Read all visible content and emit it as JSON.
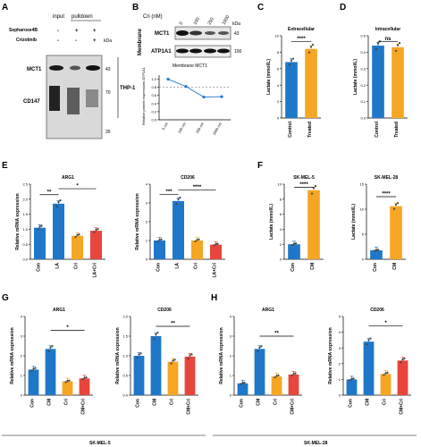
{
  "colors": {
    "blue": "#1f77c9",
    "orange": "#f5a623",
    "red": "#e8453c",
    "dot": "#444444"
  },
  "panel_a": {
    "letter": "A",
    "input_label": "input",
    "pulldown_label": "pulldown",
    "row1_label": "Sepharose4B",
    "row2_label": "Crizotinib",
    "row1_signs": [
      "-",
      "+",
      "+"
    ],
    "row2_signs": [
      "-",
      "-",
      "+"
    ],
    "kda": "kDa",
    "band1": "MCT1",
    "band2": "CD147",
    "cell_line": "THP-1",
    "markers": [
      "43",
      "70",
      "35"
    ]
  },
  "panel_b": {
    "letter": "B",
    "cri_label": "Cri (nM)",
    "doses": [
      "0",
      "100",
      "250",
      "1000"
    ],
    "membrane_label": "Membrane",
    "band1": "MCT1",
    "band2": "ATP1A1",
    "kda": "kDa",
    "marker1": "43",
    "marker2": "100",
    "plot_title": "Membrane MCT1",
    "plot_ylabel": "Relative protein expression/ ATP1A1",
    "plot_x": [
      "0 nm",
      "100 nm",
      "250 nm",
      "1000 nm"
    ],
    "plot_y": [
      1.0,
      0.82,
      0.56,
      0.57
    ],
    "plot_ticks": [
      "0.0",
      "0.2",
      "0.4",
      "0.6",
      "0.8",
      "1.0"
    ]
  },
  "panel_c": {
    "letter": "C",
    "title": "Extracellular",
    "ylabel": "Lactate (mmol/L)",
    "ticks": [
      "0",
      "2",
      "4",
      "6",
      "8",
      "10"
    ],
    "categories": [
      "Control",
      "Treated"
    ],
    "sig": "****"
  },
  "panel_d": {
    "letter": "D",
    "title": "Intracellular",
    "ylabel": "Lactate (mmol/L)",
    "ticks": [
      "0.0",
      "0.1",
      "0.2",
      "0.3",
      "0.4",
      "0.5"
    ],
    "categories": [
      "Control",
      "Treated"
    ],
    "sig": "ns"
  },
  "panel_e": {
    "letter": "E",
    "ylabel": "Relative mRNA expression",
    "categories": [
      "Con",
      "LA",
      "Cri",
      "LA+Cri"
    ],
    "ticks": [
      "0.0",
      "0.5",
      "1.0",
      "1.5",
      "2.0",
      "2.5"
    ],
    "ticks2": [
      "0",
      "1",
      "2",
      "3",
      "4"
    ],
    "title1": "ARG1",
    "title2": "CD206",
    "sig1a": "**",
    "sig1b": "*",
    "sig2a": "***",
    "sig2b": "****"
  },
  "panel_f": {
    "letter": "F",
    "ylabel": "Lactate (mmol/L)",
    "title1": "SK-MEL-5",
    "title2": "SK-MEL-28",
    "ticks1": [
      "0",
      "2",
      "4",
      "6",
      "8",
      "10"
    ],
    "ticks2": [
      "0",
      "5",
      "10",
      "15"
    ],
    "categories": [
      "Con",
      "CM"
    ],
    "sig": "****"
  },
  "panel_g": {
    "letter": "G",
    "ylabel": "Relative mRNA expression",
    "title1": "ARG1",
    "title2": "CD206",
    "categories": [
      "Con",
      "CM",
      "Cri",
      "CM+Cri"
    ],
    "ticks1": [
      "0",
      "1",
      "2",
      "3",
      "4"
    ],
    "ticks2": [
      "0.0",
      "0.5",
      "1.0",
      "1.5",
      "2.0"
    ],
    "sig1": "*",
    "sig2": "**",
    "cell_line": "SK-MEL-5"
  },
  "panel_h": {
    "letter": "H",
    "ylabel": "Relative mRNA expression",
    "title1": "ARG1",
    "title2": "CD206",
    "categories": [
      "Con",
      "CM",
      "Cri",
      "CM+Cri"
    ],
    "ticks1": [
      "0",
      "1",
      "2",
      "3",
      "4"
    ],
    "ticks2": [
      "0",
      "1",
      "2",
      "3",
      "4",
      "5"
    ],
    "sig1": "**",
    "sig2": "*",
    "cell_line": "SK-MEL-28"
  },
  "chart_data": [
    {
      "type": "line",
      "title": "Membrane MCT1",
      "xlabel": "",
      "ylabel": "Relative protein expression/ ATP1A1",
      "categories": [
        "0 nm",
        "100 nm",
        "250 nm",
        "1000 nm"
      ],
      "values": [
        1.0,
        0.82,
        0.56,
        0.57
      ],
      "ylim": [
        0,
        1.1
      ],
      "annotations": [
        "dashed line at 0.8"
      ]
    },
    {
      "type": "bar",
      "title": "Extracellular",
      "ylabel": "Lactate (mmol/L)",
      "categories": [
        "Control",
        "Treated"
      ],
      "values": [
        6.8,
        8.4
      ],
      "ylim": [
        0,
        10
      ],
      "annotations": [
        "****"
      ]
    },
    {
      "type": "bar",
      "title": "Intracellular",
      "ylabel": "Lactate (mmol/L)",
      "categories": [
        "Control",
        "Treated"
      ],
      "values": [
        0.44,
        0.43
      ],
      "ylim": [
        0,
        0.5
      ],
      "annotations": [
        "ns"
      ]
    },
    {
      "type": "bar",
      "title": "ARG1",
      "ylabel": "Relative mRNA expression",
      "categories": [
        "Con",
        "LA",
        "Cri",
        "LA+Cri"
      ],
      "values": [
        1.05,
        1.85,
        0.78,
        0.95
      ],
      "ylim": [
        0,
        2.5
      ],
      "annotations": [
        "**",
        "*"
      ]
    },
    {
      "type": "bar",
      "title": "CD206",
      "ylabel": "Relative mRNA expression",
      "categories": [
        "Con",
        "LA",
        "Cri",
        "LA+Cri"
      ],
      "values": [
        1.0,
        3.1,
        1.0,
        0.78
      ],
      "ylim": [
        0,
        4
      ],
      "annotations": [
        "***",
        "****"
      ]
    },
    {
      "type": "bar",
      "title": "SK-MEL-5",
      "ylabel": "Lactate (mmol/L)",
      "categories": [
        "Con",
        "CM"
      ],
      "values": [
        2.0,
        9.2
      ],
      "ylim": [
        0,
        10
      ],
      "annotations": [
        "****"
      ]
    },
    {
      "type": "bar",
      "title": "SK-MEL-28",
      "ylabel": "Lactate (mmol/L)",
      "categories": [
        "Con",
        "CM"
      ],
      "values": [
        1.8,
        10.6
      ],
      "ylim": [
        0,
        15
      ],
      "annotations": [
        "****"
      ]
    },
    {
      "type": "bar",
      "title": "ARG1",
      "ylabel": "Relative mRNA expression",
      "categories": [
        "Con",
        "CM",
        "Cri",
        "CM+Cri"
      ],
      "values": [
        1.3,
        2.35,
        0.7,
        0.85
      ],
      "ylim": [
        0,
        4
      ],
      "annotations": [
        "*"
      ]
    },
    {
      "type": "bar",
      "title": "CD206",
      "ylabel": "Relative mRNA expression",
      "categories": [
        "Con",
        "CM",
        "Cri",
        "CM+Cri"
      ],
      "values": [
        1.0,
        1.5,
        0.85,
        0.98
      ],
      "ylim": [
        0,
        2
      ],
      "annotations": [
        "**"
      ]
    },
    {
      "type": "bar",
      "title": "ARG1",
      "ylabel": "Relative mRNA expression",
      "categories": [
        "Con",
        "CM",
        "Cri",
        "CM+Cri"
      ],
      "values": [
        0.6,
        2.35,
        0.95,
        1.05
      ],
      "ylim": [
        0,
        4
      ],
      "annotations": [
        "**"
      ]
    },
    {
      "type": "bar",
      "title": "CD206",
      "ylabel": "Relative mRNA expression",
      "categories": [
        "Con",
        "CM",
        "Cri",
        "CM+Cri"
      ],
      "values": [
        1.0,
        3.4,
        1.35,
        2.2
      ],
      "ylim": [
        0,
        5
      ],
      "annotations": [
        "*"
      ]
    }
  ]
}
